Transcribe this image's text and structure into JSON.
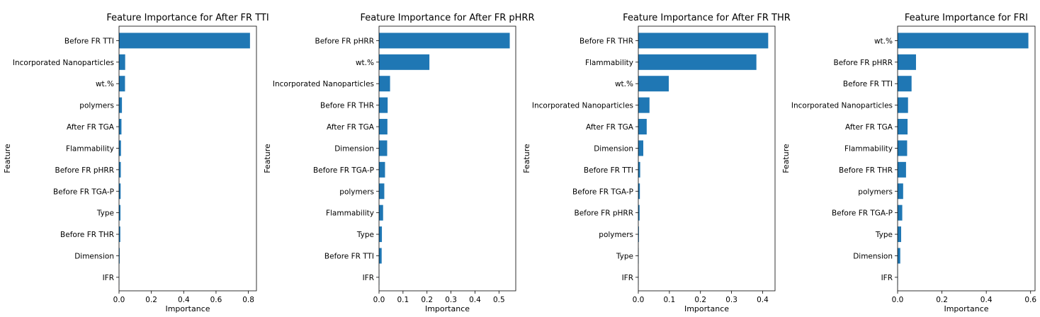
{
  "colors": {
    "bar": "#1f77b4",
    "axes": "#000000",
    "background": "#ffffff"
  },
  "chart_data": [
    {
      "type": "bar",
      "orientation": "horizontal",
      "title": "Feature Importance for After FR TTI",
      "xlabel": "Importance",
      "ylabel": "Feature",
      "xlim": [
        0,
        0.85
      ],
      "xticks": [
        0.0,
        0.2,
        0.4,
        0.6,
        0.8
      ],
      "xtick_labels": [
        "0.0",
        "0.2",
        "0.4",
        "0.6",
        "0.8"
      ],
      "categories": [
        "Before FR TTI",
        "Incorporated Nanoparticles",
        "wt.%",
        "polymers",
        "After FR TGA",
        "Flammability",
        "Before FR pHRR",
        "Before FR TGA-P",
        "Type",
        "Before FR THR",
        "Dimension",
        "IFR"
      ],
      "values": [
        0.81,
        0.038,
        0.037,
        0.018,
        0.015,
        0.012,
        0.011,
        0.01,
        0.009,
        0.008,
        0.004,
        0.001
      ]
    },
    {
      "type": "bar",
      "orientation": "horizontal",
      "title": "Feature Importance for After FR pHRR",
      "xlabel": "Importance",
      "ylabel": "Feature",
      "xlim": [
        0,
        0.57
      ],
      "xticks": [
        0.0,
        0.1,
        0.2,
        0.3,
        0.4,
        0.5
      ],
      "xtick_labels": [
        "0.0",
        "0.1",
        "0.2",
        "0.3",
        "0.4",
        "0.5"
      ],
      "categories": [
        "Before FR pHRR",
        "wt.%",
        "Incorporated Nanoparticles",
        "Before FR THR",
        "After FR TGA",
        "Dimension",
        "Before FR TGA-P",
        "polymers",
        "Flammability",
        "Type",
        "Before FR TTI",
        "IFR"
      ],
      "values": [
        0.545,
        0.21,
        0.046,
        0.036,
        0.035,
        0.034,
        0.025,
        0.022,
        0.017,
        0.012,
        0.011,
        0.001
      ]
    },
    {
      "type": "bar",
      "orientation": "horizontal",
      "title": "Feature Importance for After FR THR",
      "xlabel": "Importance",
      "ylabel": "Feature",
      "xlim": [
        0,
        0.44
      ],
      "xticks": [
        0.0,
        0.1,
        0.2,
        0.3,
        0.4
      ],
      "xtick_labels": [
        "0.0",
        "0.1",
        "0.2",
        "0.3",
        "0.4"
      ],
      "categories": [
        "Before FR THR",
        "Flammability",
        "wt.%",
        "Incorporated Nanoparticles",
        "After FR TGA",
        "Dimension",
        "Before FR TTI",
        "Before FR TGA-P",
        "Before FR pHRR",
        "polymers",
        "Type",
        "IFR"
      ],
      "values": [
        0.418,
        0.38,
        0.098,
        0.036,
        0.027,
        0.016,
        0.006,
        0.005,
        0.004,
        0.002,
        0.001,
        0.0005
      ]
    },
    {
      "type": "bar",
      "orientation": "horizontal",
      "title": "Feature Importance for FRI",
      "xlabel": "Importance",
      "ylabel": "Feature",
      "xlim": [
        0,
        0.62
      ],
      "xticks": [
        0.0,
        0.2,
        0.4,
        0.6
      ],
      "xtick_labels": [
        "0.0",
        "0.2",
        "0.4",
        "0.6"
      ],
      "categories": [
        "wt.%",
        "Before FR pHRR",
        "Before FR TTI",
        "Incorporated Nanoparticles",
        "After FR TGA",
        "Flammability",
        "Before FR THR",
        "polymers",
        "Before FR TGA-P",
        "Type",
        "Dimension",
        "IFR"
      ],
      "values": [
        0.59,
        0.083,
        0.063,
        0.047,
        0.045,
        0.043,
        0.038,
        0.025,
        0.021,
        0.016,
        0.012,
        0.001
      ]
    }
  ]
}
